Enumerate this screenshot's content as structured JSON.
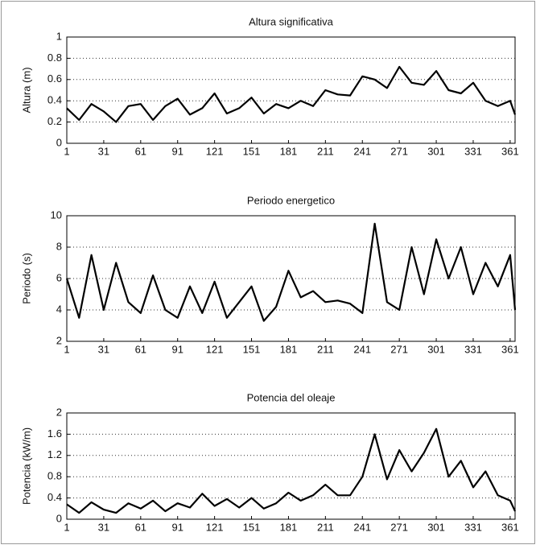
{
  "chart_data": [
    {
      "type": "line",
      "title": "Altura significativa",
      "y_label": "Altura (m)",
      "x": [
        1,
        11,
        21,
        31,
        41,
        51,
        61,
        71,
        81,
        91,
        101,
        111,
        121,
        131,
        141,
        151,
        161,
        171,
        181,
        191,
        201,
        211,
        221,
        231,
        241,
        251,
        261,
        271,
        281,
        291,
        301,
        311,
        321,
        331,
        341,
        351,
        361,
        365
      ],
      "series": [
        {
          "color": "#000000",
          "values": [
            0.33,
            0.22,
            0.37,
            0.3,
            0.2,
            0.35,
            0.37,
            0.22,
            0.35,
            0.42,
            0.27,
            0.33,
            0.47,
            0.28,
            0.33,
            0.43,
            0.28,
            0.37,
            0.33,
            0.4,
            0.35,
            0.5,
            0.46,
            0.45,
            0.63,
            0.6,
            0.52,
            0.72,
            0.57,
            0.55,
            0.68,
            0.5,
            0.47,
            0.57,
            0.4,
            0.35,
            0.4,
            0.27
          ]
        }
      ],
      "xlim": [
        1,
        365
      ],
      "xticks": [
        1,
        31,
        61,
        91,
        121,
        151,
        181,
        211,
        241,
        271,
        301,
        331,
        361
      ],
      "ylim": [
        0,
        1
      ],
      "yticks": [
        0,
        0.2,
        0.4,
        0.6,
        0.8,
        1
      ],
      "grid": true
    },
    {
      "type": "line",
      "title": "Periodo energetico",
      "y_label": "Periodo (s)",
      "x": [
        1,
        11,
        21,
        31,
        41,
        51,
        61,
        71,
        81,
        91,
        101,
        111,
        121,
        131,
        141,
        151,
        161,
        171,
        181,
        191,
        201,
        211,
        221,
        231,
        241,
        251,
        261,
        271,
        281,
        291,
        301,
        311,
        321,
        331,
        341,
        351,
        361,
        365
      ],
      "series": [
        {
          "color": "#000000",
          "values": [
            6,
            3.5,
            7.5,
            4,
            7,
            4.5,
            3.8,
            6.2,
            4,
            3.5,
            5.5,
            3.8,
            5.8,
            3.5,
            4.5,
            5.5,
            3.3,
            4.2,
            6.5,
            4.8,
            5.2,
            4.5,
            4.6,
            4.4,
            3.8,
            9.5,
            4.5,
            4,
            8,
            5,
            8.5,
            6,
            8,
            5,
            7,
            5.5,
            7.5,
            4
          ]
        }
      ],
      "xlim": [
        1,
        365
      ],
      "xticks": [
        1,
        31,
        61,
        91,
        121,
        151,
        181,
        211,
        241,
        271,
        301,
        331,
        361
      ],
      "ylim": [
        2,
        10
      ],
      "yticks": [
        2,
        4,
        6,
        8,
        10
      ],
      "grid": true
    },
    {
      "type": "line",
      "title": "Potencia del oleaje",
      "y_label": "Potencia (kW/m)",
      "x": [
        1,
        11,
        21,
        31,
        41,
        51,
        61,
        71,
        81,
        91,
        101,
        111,
        121,
        131,
        141,
        151,
        161,
        171,
        181,
        191,
        201,
        211,
        221,
        231,
        241,
        251,
        261,
        271,
        281,
        291,
        301,
        311,
        321,
        331,
        341,
        351,
        361,
        365
      ],
      "series": [
        {
          "color": "#000000",
          "values": [
            0.28,
            0.12,
            0.32,
            0.18,
            0.12,
            0.3,
            0.2,
            0.35,
            0.15,
            0.3,
            0.22,
            0.48,
            0.25,
            0.38,
            0.22,
            0.4,
            0.2,
            0.3,
            0.5,
            0.35,
            0.45,
            0.65,
            0.45,
            0.45,
            0.8,
            1.6,
            0.75,
            1.3,
            0.9,
            1.25,
            1.7,
            0.8,
            1.1,
            0.6,
            0.9,
            0.45,
            0.35,
            0.15
          ]
        }
      ],
      "xlim": [
        1,
        365
      ],
      "xticks": [
        1,
        31,
        61,
        91,
        121,
        151,
        181,
        211,
        241,
        271,
        301,
        331,
        361
      ],
      "ylim": [
        0,
        2
      ],
      "yticks": [
        0,
        0.4,
        0.8,
        1.2,
        1.6,
        2
      ],
      "grid": true
    }
  ]
}
